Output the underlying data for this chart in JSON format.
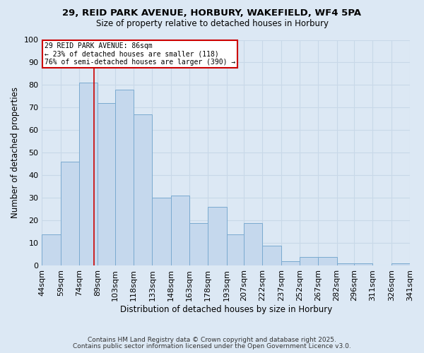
{
  "title1": "29, REID PARK AVENUE, HORBURY, WAKEFIELD, WF4 5PA",
  "title2": "Size of property relative to detached houses in Horbury",
  "xlabel": "Distribution of detached houses by size in Horbury",
  "ylabel": "Number of detached properties",
  "bar_left_edges": [
    44,
    59,
    74,
    89,
    103,
    118,
    133,
    148,
    163,
    178,
    193,
    207,
    222,
    237,
    252,
    267,
    282,
    296,
    311,
    326
  ],
  "bar_widths": [
    15,
    15,
    15,
    14,
    15,
    15,
    15,
    15,
    15,
    15,
    14,
    15,
    15,
    15,
    15,
    15,
    14,
    15,
    15,
    15
  ],
  "bar_heights": [
    14,
    46,
    81,
    72,
    78,
    67,
    30,
    31,
    19,
    26,
    14,
    19,
    9,
    2,
    4,
    4,
    1,
    1,
    0,
    1
  ],
  "tick_labels": [
    "44sqm",
    "59sqm",
    "74sqm",
    "89sqm",
    "103sqm",
    "118sqm",
    "133sqm",
    "148sqm",
    "163sqm",
    "178sqm",
    "193sqm",
    "207sqm",
    "222sqm",
    "237sqm",
    "252sqm",
    "267sqm",
    "282sqm",
    "296sqm",
    "311sqm",
    "326sqm",
    "341sqm"
  ],
  "tick_positions": [
    44,
    59,
    74,
    89,
    103,
    118,
    133,
    148,
    163,
    178,
    193,
    207,
    222,
    237,
    252,
    267,
    282,
    296,
    311,
    326,
    341
  ],
  "bar_color": "#c5d8ed",
  "bar_edge_color": "#7aaad0",
  "vline_x": 86,
  "vline_color": "#cc0000",
  "annotation_line1": "29 REID PARK AVENUE: 86sqm",
  "annotation_line2": "← 23% of detached houses are smaller (118)",
  "annotation_line3": "76% of semi-detached houses are larger (390) →",
  "annotation_box_color": "#cc0000",
  "ylim": [
    0,
    100
  ],
  "yticks": [
    0,
    10,
    20,
    30,
    40,
    50,
    60,
    70,
    80,
    90,
    100
  ],
  "grid_color": "#c8d8e8",
  "bg_color": "#dce8f4",
  "plot_bg_color": "#dce8f4",
  "footer1": "Contains HM Land Registry data © Crown copyright and database right 2025.",
  "footer2": "Contains public sector information licensed under the Open Government Licence v3.0."
}
